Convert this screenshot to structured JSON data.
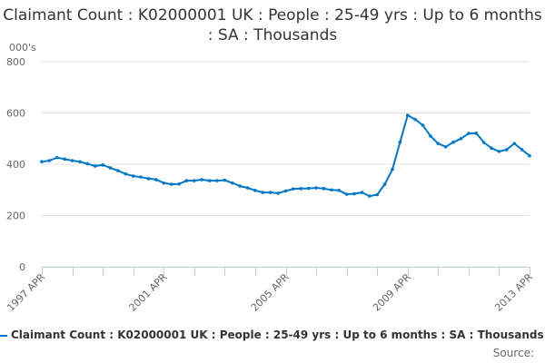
{
  "chart_data": {
    "type": "line",
    "title": "Claimant Count : K02000001 UK : People : 25-49 yrs : Up to 6 months : SA : Thousands",
    "ylabel": "000's",
    "ylim": [
      0,
      800
    ],
    "yticks": [
      "0",
      "200",
      "400",
      "600",
      "800"
    ],
    "xtick_labels": [
      "1997 APR",
      "2001 APR",
      "2005 APR",
      "2009 APR",
      "2013 APR"
    ],
    "grid": true,
    "legend_placement": "bottom",
    "color": "#0077c8",
    "series": [
      {
        "name": "Claimant Count : K02000001 UK : People : 25-49 yrs : Up to 6 months : SA : Thousands",
        "x": [
          "1997 APR",
          "1997 JUL",
          "1997 OCT",
          "1998 JAN",
          "1998 APR",
          "1998 JUL",
          "1998 OCT",
          "1999 JAN",
          "1999 APR",
          "1999 JUL",
          "1999 OCT",
          "2000 JAN",
          "2000 APR",
          "2000 JUL",
          "2000 OCT",
          "2001 JAN",
          "2001 APR",
          "2001 JUL",
          "2001 OCT",
          "2002 JAN",
          "2002 APR",
          "2002 JUL",
          "2002 OCT",
          "2003 JAN",
          "2003 APR",
          "2003 JUL",
          "2003 OCT",
          "2004 JAN",
          "2004 APR",
          "2004 JUL",
          "2004 OCT",
          "2005 JAN",
          "2005 APR",
          "2005 JUL",
          "2005 OCT",
          "2006 JAN",
          "2006 APR",
          "2006 JUL",
          "2006 OCT",
          "2007 JAN",
          "2007 APR",
          "2007 JUL",
          "2007 OCT",
          "2008 JAN",
          "2008 APR",
          "2008 JUL",
          "2008 OCT",
          "2009 JAN",
          "2009 APR",
          "2009 JUL",
          "2009 OCT",
          "2010 JAN",
          "2010 APR",
          "2010 JUL",
          "2010 OCT",
          "2011 JAN",
          "2011 APR",
          "2011 JUL",
          "2011 OCT",
          "2012 JAN",
          "2012 APR",
          "2012 JUL",
          "2012 OCT",
          "2013 JAN",
          "2013 APR"
        ],
        "values": [
          410,
          414,
          426,
          420,
          414,
          410,
          402,
          393,
          397,
          386,
          375,
          362,
          354,
          350,
          344,
          340,
          327,
          322,
          323,
          336,
          336,
          340,
          336,
          336,
          338,
          327,
          315,
          308,
          298,
          290,
          290,
          287,
          296,
          304,
          305,
          306,
          308,
          305,
          300,
          298,
          283,
          285,
          290,
          276,
          281,
          322,
          380,
          486,
          591,
          575,
          552,
          510,
          481,
          468,
          486,
          500,
          520,
          521,
          485,
          463,
          450,
          457,
          481,
          457,
          433
        ]
      }
    ]
  },
  "source_label": "Source:"
}
